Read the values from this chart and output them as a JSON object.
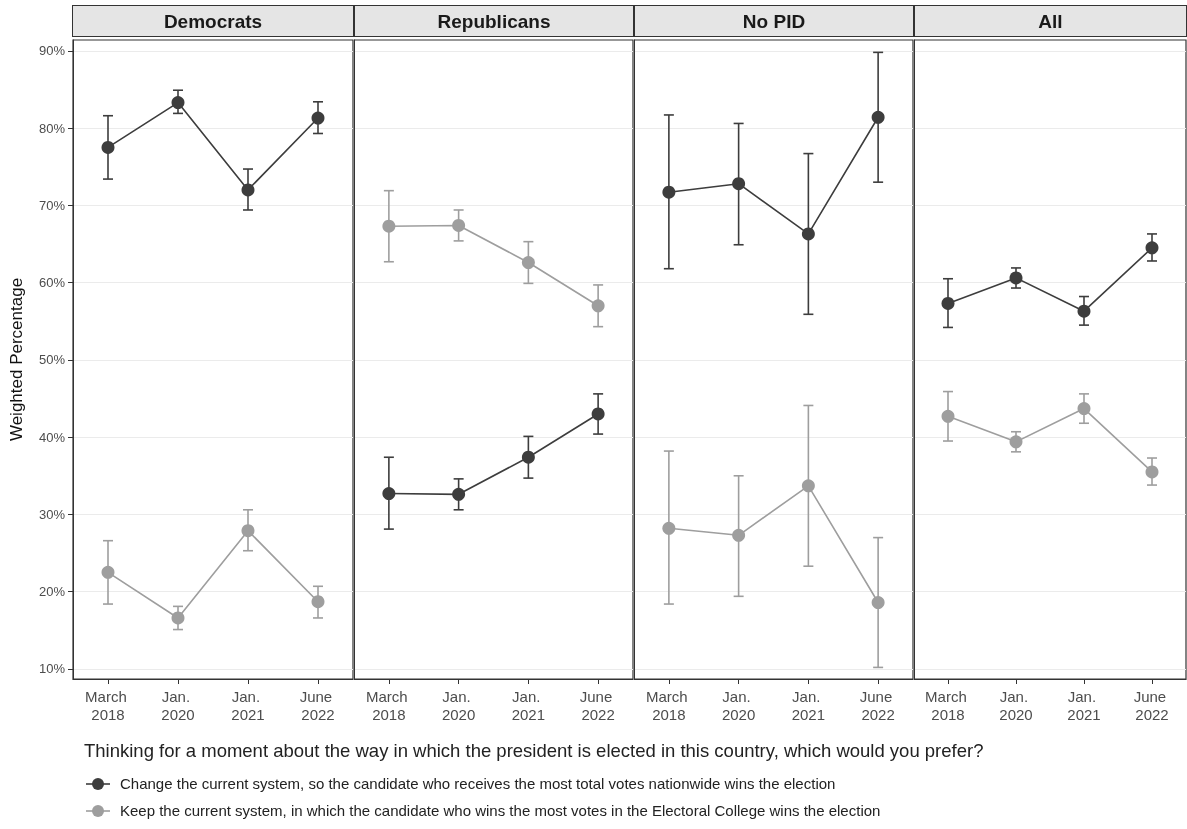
{
  "chart_data": [
    {
      "type": "line",
      "title": "Democrats",
      "ylabel": "Weighted Percentage",
      "legend_title": "Thinking for a moment about the way in which the president is elected in this country, which would you prefer?",
      "legend": "bottom",
      "categories": [
        "March 2018",
        "Jan. 2020",
        "Jan. 2021",
        "June 2022"
      ],
      "ylim": [
        8.7,
        91.4
      ],
      "yticks": [
        {
          "value": 10,
          "label": "10%"
        },
        {
          "value": 20,
          "label": "20%"
        },
        {
          "value": 30,
          "label": "30%"
        },
        {
          "value": 40,
          "label": "40%"
        },
        {
          "value": 50,
          "label": "50%"
        },
        {
          "value": 60,
          "label": "60%"
        },
        {
          "value": 70,
          "label": "70%"
        },
        {
          "value": 80,
          "label": "80%"
        },
        {
          "value": 90,
          "label": "90%"
        }
      ],
      "grid": "y",
      "marker": "circle",
      "line_style": "solid",
      "series": [
        {
          "name": "Change the current system, so the candidate who receives the most total votes nationwide wins the election",
          "color": "#3d3d3d",
          "values": [
            77.5,
            83.3,
            72.0,
            81.3
          ],
          "errors": [
            [
              73.4,
              81.6
            ],
            [
              81.9,
              84.9
            ],
            [
              69.4,
              74.7
            ],
            [
              79.3,
              83.4
            ]
          ]
        },
        {
          "name": "Keep the current system, in which the candidate who wins the most votes in the Electoral College wins the election",
          "color": "#9e9e9e",
          "values": [
            22.5,
            16.6,
            27.9,
            18.7
          ],
          "errors": [
            [
              18.4,
              26.6
            ],
            [
              15.1,
              18.1
            ],
            [
              25.3,
              30.6
            ],
            [
              16.6,
              20.7
            ]
          ]
        }
      ]
    },
    {
      "type": "line",
      "title": "Republicans",
      "categories": [
        "March 2018",
        "Jan. 2020",
        "Jan. 2021",
        "June 2022"
      ],
      "ylim": [
        8.7,
        91.4
      ],
      "yticks": [
        10,
        20,
        30,
        40,
        50,
        60,
        70,
        80,
        90
      ],
      "grid": "y",
      "marker": "circle",
      "line_style": "solid",
      "tick_labels": "x",
      "series": [
        {
          "color": "#3d3d3d",
          "values": [
            32.7,
            32.6,
            37.4,
            43.0
          ],
          "errors": [
            [
              28.1,
              37.4
            ],
            [
              30.6,
              34.6
            ],
            [
              34.7,
              40.1
            ],
            [
              40.4,
              45.6
            ]
          ]
        },
        {
          "color": "#9e9e9e",
          "values": [
            67.3,
            67.4,
            62.6,
            57.0
          ],
          "errors": [
            [
              62.7,
              71.9
            ],
            [
              65.4,
              69.4
            ],
            [
              59.9,
              65.3
            ],
            [
              54.3,
              59.7
            ]
          ]
        }
      ]
    },
    {
      "type": "line",
      "title": "No PID",
      "categories": [
        "March 2018",
        "Jan. 2020",
        "Jan. 2021",
        "June 2022"
      ],
      "ylim": [
        8.7,
        91.4
      ],
      "yticks": [
        10,
        20,
        30,
        40,
        50,
        60,
        70,
        80,
        90
      ],
      "grid": "y",
      "marker": "circle",
      "line_style": "solid",
      "tick_labels": "x",
      "series": [
        {
          "color": "#3d3d3d",
          "values": [
            71.7,
            72.8,
            66.3,
            81.4
          ],
          "errors": [
            [
              61.8,
              81.7
            ],
            [
              64.9,
              80.6
            ],
            [
              55.9,
              76.7
            ],
            [
              73.0,
              89.8
            ]
          ]
        },
        {
          "color": "#9e9e9e",
          "values": [
            28.2,
            27.3,
            33.7,
            18.6
          ],
          "errors": [
            [
              18.4,
              38.2
            ],
            [
              19.4,
              35.0
            ],
            [
              23.3,
              44.1
            ],
            [
              10.2,
              27.0
            ]
          ]
        }
      ]
    },
    {
      "type": "line",
      "title": "All",
      "categories": [
        "March 2018",
        "Jan. 2020",
        "Jan. 2021",
        "June 2022"
      ],
      "ylim": [
        8.7,
        91.4
      ],
      "yticks": [
        10,
        20,
        30,
        40,
        50,
        60,
        70,
        80,
        90
      ],
      "grid": "y",
      "marker": "circle",
      "line_style": "solid",
      "tick_labels": "x",
      "series": [
        {
          "color": "#3d3d3d",
          "values": [
            57.3,
            60.6,
            56.3,
            64.5
          ],
          "errors": [
            [
              54.2,
              60.5
            ],
            [
              59.3,
              61.9
            ],
            [
              54.5,
              58.2
            ],
            [
              62.8,
              66.3
            ]
          ]
        },
        {
          "color": "#9e9e9e",
          "values": [
            42.7,
            39.4,
            43.7,
            35.5
          ],
          "errors": [
            [
              39.5,
              45.9
            ],
            [
              38.1,
              40.7
            ],
            [
              41.8,
              45.6
            ],
            [
              33.8,
              37.3
            ]
          ]
        }
      ]
    }
  ]
}
